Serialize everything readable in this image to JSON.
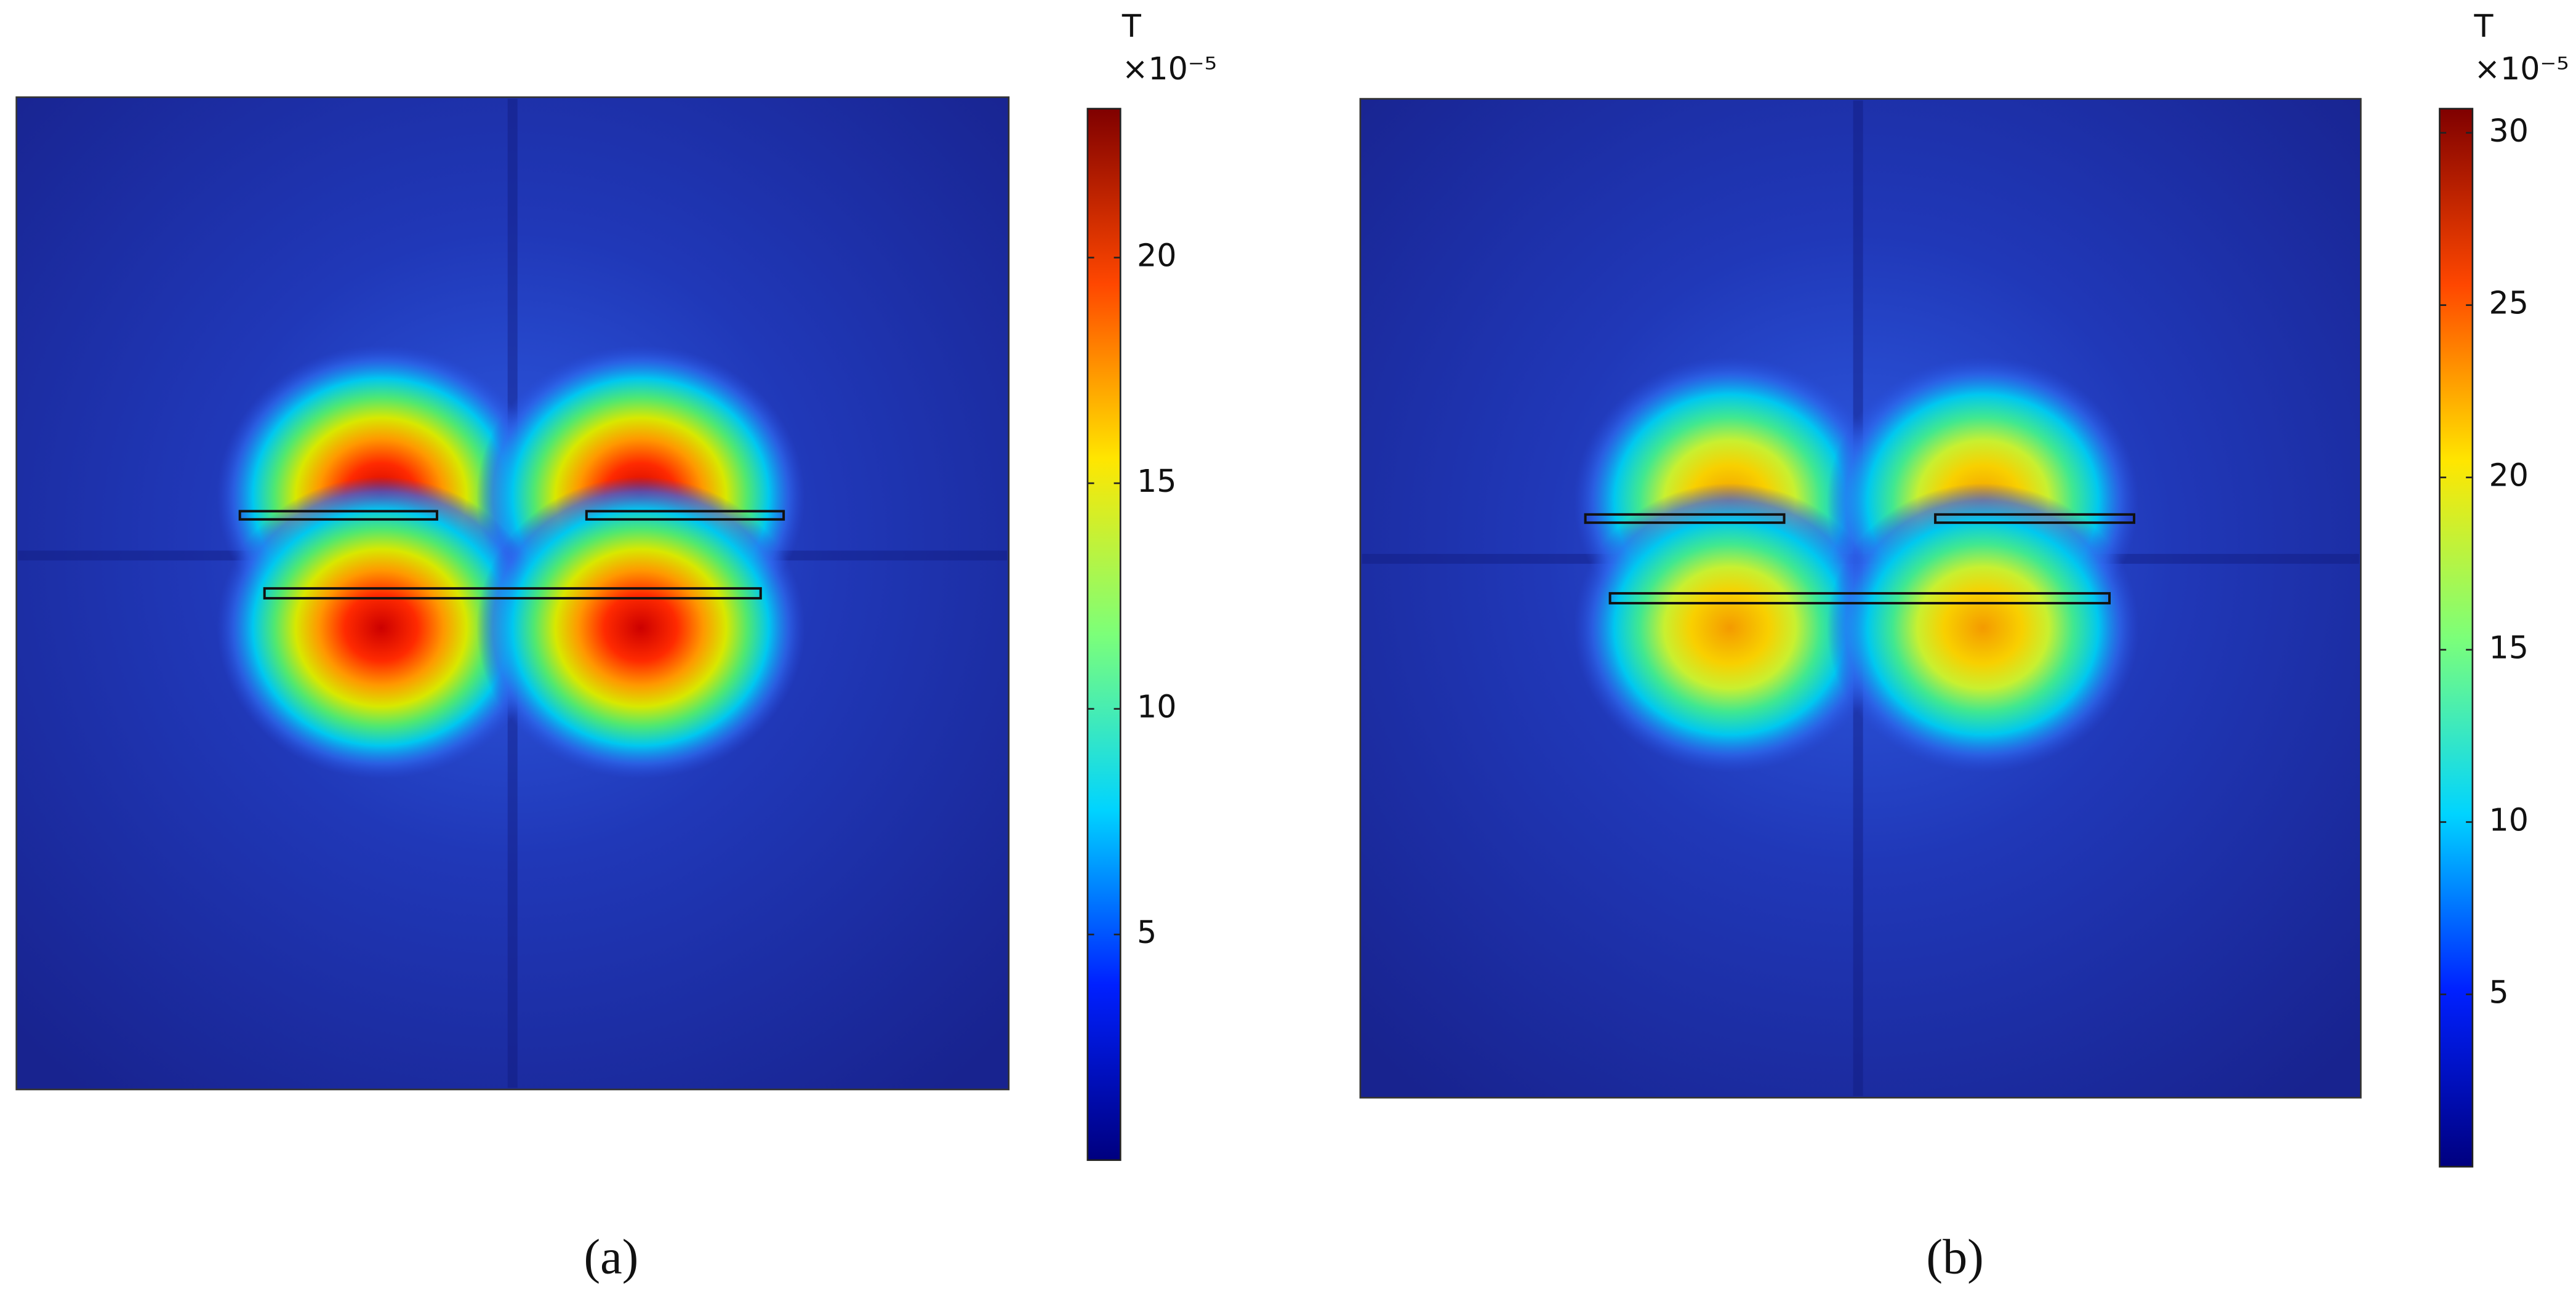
{
  "chart_data": [
    {
      "type": "heatmap",
      "caption": "(a)",
      "colorbar_label": "T",
      "colorbar_scale": "×10⁻⁵",
      "zlim": [
        0,
        23.3
      ],
      "zticks": [
        5,
        10,
        15,
        20
      ],
      "colormap": [
        "#00007f",
        "#0020ff",
        "#00d4ff",
        "#7cff79",
        "#ffe600",
        "#ff4700",
        "#7f0000"
      ]
    },
    {
      "type": "heatmap",
      "caption": "(b)",
      "colorbar_label": "T",
      "colorbar_scale": "×10⁻⁵",
      "zlim": [
        0,
        30.7
      ],
      "zticks": [
        5,
        10,
        15,
        20,
        25,
        30
      ],
      "colormap": [
        "#00007f",
        "#0020ff",
        "#00d4ff",
        "#7cff79",
        "#ffe600",
        "#ff4700",
        "#7f0000"
      ]
    }
  ]
}
